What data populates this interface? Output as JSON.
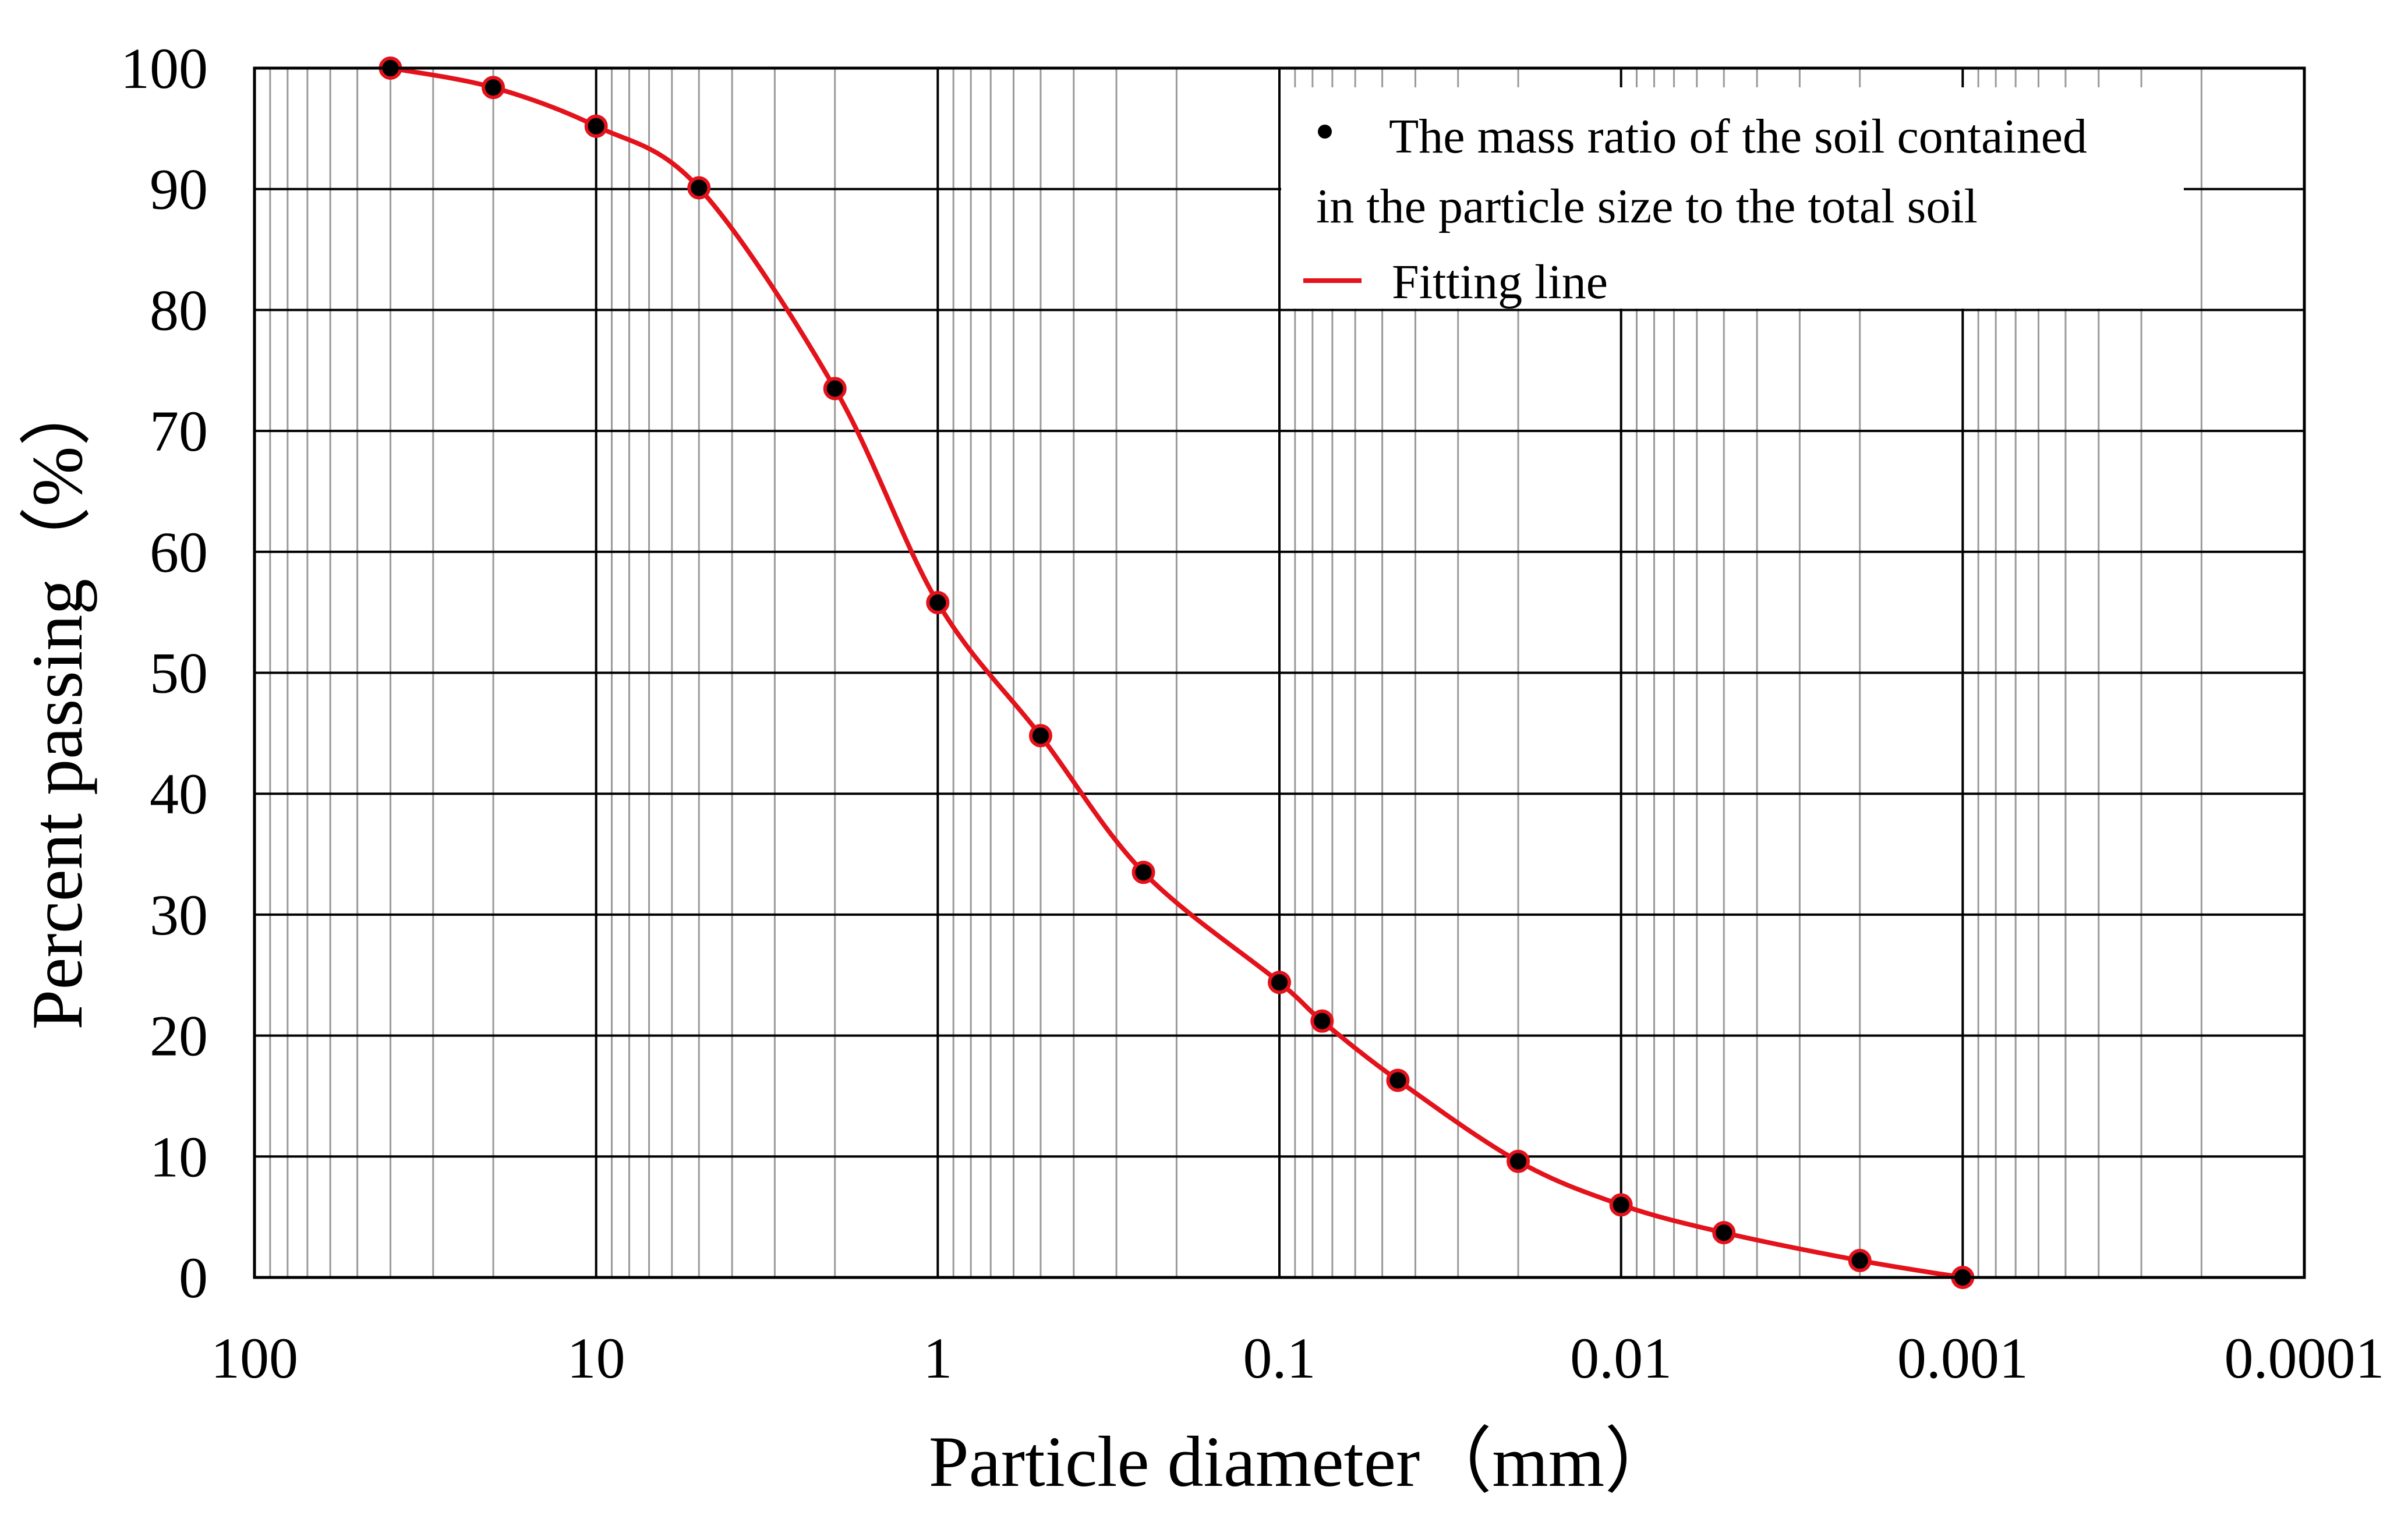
{
  "chart_data": {
    "type": "line",
    "title": "",
    "xlabel": "Particle diameter（mm）",
    "ylabel": "Percent passing（%）",
    "x_scale": "log",
    "x_reversed": true,
    "xlim": [
      100,
      0.0001
    ],
    "ylim": [
      0,
      100
    ],
    "x_tick_labels": [
      "100",
      "10",
      "1",
      "0.1",
      "0.01",
      "0.001",
      "0.0001"
    ],
    "x_tick_values": [
      100,
      10,
      1,
      0.1,
      0.01,
      0.001,
      0.0001
    ],
    "y_tick_labels": [
      "0",
      "10",
      "20",
      "30",
      "40",
      "50",
      "60",
      "70",
      "80",
      "90",
      "100"
    ],
    "y_tick_values": [
      0,
      10,
      20,
      30,
      40,
      50,
      60,
      70,
      80,
      90,
      100
    ],
    "grid": true,
    "legend_position": "top-right",
    "series": [
      {
        "name": "The mass ratio of the soil contained in the particle size to the total soil",
        "legend_lines": [
          "The mass ratio of the soil contained",
          "in the particle size to the total soil"
        ],
        "kind": "points",
        "color": "#000000",
        "x": [
          40,
          20,
          10,
          5,
          2,
          1,
          0.5,
          0.25,
          0.1,
          0.075,
          0.045,
          0.02,
          0.01,
          0.005,
          0.002,
          0.001
        ],
        "y": [
          100,
          98.4,
          95.2,
          90.1,
          73.5,
          55.8,
          44.8,
          33.5,
          24.4,
          21.2,
          16.3,
          9.6,
          6.0,
          3.7,
          1.4,
          0
        ]
      },
      {
        "name": "Fitting line",
        "kind": "line",
        "color": "#e3121b",
        "x": [
          40,
          20,
          10,
          5,
          2,
          1,
          0.5,
          0.25,
          0.1,
          0.075,
          0.045,
          0.02,
          0.01,
          0.005,
          0.002,
          0.001
        ],
        "y": [
          100,
          98.4,
          95.2,
          90.1,
          73.5,
          55.8,
          44.8,
          33.5,
          24.4,
          21.2,
          16.3,
          9.6,
          6.0,
          3.7,
          1.4,
          0
        ]
      }
    ]
  }
}
